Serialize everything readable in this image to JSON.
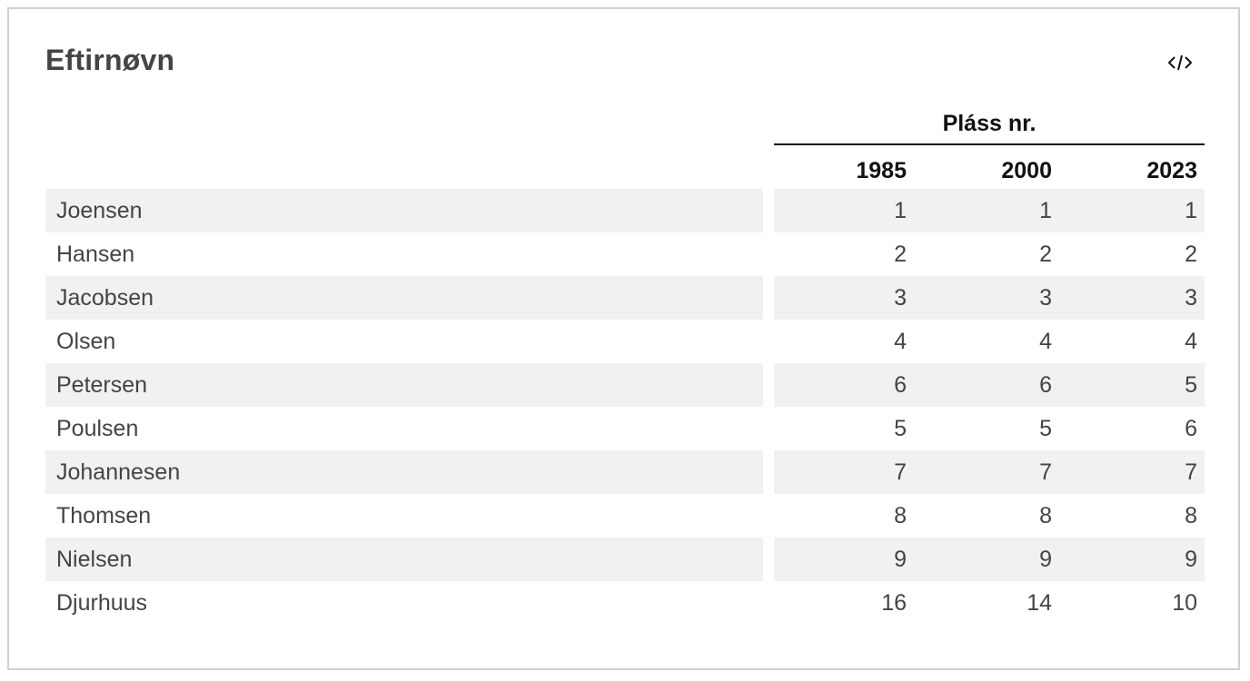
{
  "title": "Eftirnøvn",
  "embed_icon": "code-embed-icon",
  "table": {
    "group_header": "Pláss nr.",
    "columns": [
      "1985",
      "2000",
      "2023"
    ],
    "rows": [
      {
        "name": "Joensen",
        "values": [
          "1",
          "1",
          "1"
        ]
      },
      {
        "name": "Hansen",
        "values": [
          "2",
          "2",
          "2"
        ]
      },
      {
        "name": "Jacobsen",
        "values": [
          "3",
          "3",
          "3"
        ]
      },
      {
        "name": "Olsen",
        "values": [
          "4",
          "4",
          "4"
        ]
      },
      {
        "name": "Petersen",
        "values": [
          "6",
          "6",
          "5"
        ]
      },
      {
        "name": "Poulsen",
        "values": [
          "5",
          "5",
          "6"
        ]
      },
      {
        "name": "Johannesen",
        "values": [
          "7",
          "7",
          "7"
        ]
      },
      {
        "name": "Thomsen",
        "values": [
          "8",
          "8",
          "8"
        ]
      },
      {
        "name": "Nielsen",
        "values": [
          "9",
          "9",
          "9"
        ]
      },
      {
        "name": "Djurhuus",
        "values": [
          "16",
          "14",
          "10"
        ]
      }
    ]
  },
  "colors": {
    "row_shade": "#f1f1f1",
    "text": "#444444",
    "header_text": "#111111",
    "border": "#d0d0d0"
  }
}
